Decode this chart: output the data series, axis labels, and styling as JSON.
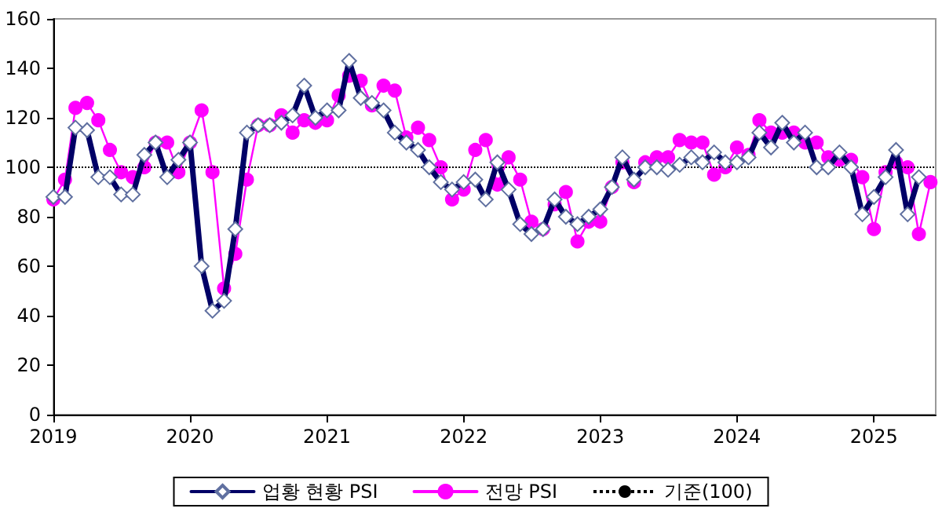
{
  "chart_data": {
    "type": "line",
    "x": [
      "2019-01",
      "2019-02",
      "2019-03",
      "2019-04",
      "2019-05",
      "2019-06",
      "2019-07",
      "2019-08",
      "2019-09",
      "2019-10",
      "2019-11",
      "2019-12",
      "2020-01",
      "2020-02",
      "2020-03",
      "2020-04",
      "2020-05",
      "2020-06",
      "2020-07",
      "2020-08",
      "2020-09",
      "2020-10",
      "2020-11",
      "2020-12",
      "2021-01",
      "2021-02",
      "2021-03",
      "2021-04",
      "2021-05",
      "2021-06",
      "2021-07",
      "2021-08",
      "2021-09",
      "2021-10",
      "2021-11",
      "2021-12",
      "2022-01",
      "2022-02",
      "2022-03",
      "2022-04",
      "2022-05",
      "2022-06",
      "2022-07",
      "2022-08",
      "2022-09",
      "2022-10",
      "2022-11",
      "2022-12",
      "2023-01",
      "2023-02",
      "2023-03",
      "2023-04",
      "2023-05",
      "2023-06",
      "2023-07",
      "2023-08",
      "2023-09",
      "2023-10",
      "2023-11",
      "2023-12",
      "2024-01",
      "2024-02",
      "2024-03",
      "2024-04",
      "2024-05",
      "2024-06",
      "2024-07",
      "2024-08",
      "2024-09",
      "2024-10",
      "2024-11",
      "2024-12",
      "2025-01",
      "2025-02",
      "2025-03",
      "2025-04",
      "2025-05",
      "2025-06"
    ],
    "series": [
      {
        "name": "업황 현황 PSI",
        "color": "#000066",
        "marker": "diamond",
        "values": [
          88,
          88,
          116,
          115,
          96,
          96,
          89,
          89,
          105,
          110,
          96,
          103,
          110,
          60,
          42,
          46,
          75,
          114,
          117,
          117,
          118,
          121,
          133,
          120,
          123,
          123,
          143,
          128,
          126,
          123,
          114,
          110,
          107,
          100,
          94,
          91,
          94,
          95,
          87,
          102,
          91,
          77,
          73,
          75,
          87,
          80,
          77,
          80,
          83,
          92,
          104,
          95,
          100,
          100,
          99,
          101,
          104,
          102,
          106,
          102,
          102,
          104,
          114,
          108,
          118,
          110,
          114,
          100,
          100,
          106,
          100,
          81,
          88,
          96,
          107,
          81,
          96,
          null
        ]
      },
      {
        "name": "전망 PSI",
        "color": "#ff00ff",
        "marker": "circle",
        "values": [
          87,
          95,
          124,
          126,
          119,
          107,
          98,
          96,
          100,
          110,
          110,
          98,
          110,
          123,
          98,
          51,
          65,
          95,
          117,
          117,
          121,
          114,
          119,
          118,
          119,
          129,
          137,
          135,
          125,
          133,
          131,
          112,
          116,
          111,
          100,
          87,
          91,
          107,
          111,
          93,
          104,
          95,
          78,
          75,
          85,
          90,
          70,
          78,
          78,
          92,
          102,
          94,
          102,
          104,
          104,
          111,
          110,
          110,
          97,
          100,
          108,
          105,
          119,
          114,
          114,
          114,
          110,
          110,
          104,
          103,
          103,
          96,
          75,
          98,
          102,
          100,
          73,
          94
        ]
      }
    ],
    "ref_lines": [
      {
        "axis": "y",
        "value": 100,
        "label": "기준(100)",
        "color": "#000000",
        "line_style": "dotted"
      }
    ],
    "xlim": [
      "2019-01",
      "2025-06-15"
    ],
    "xticks": [
      "2019",
      "2020",
      "2021",
      "2022",
      "2023",
      "2024",
      "2025"
    ],
    "ylim": [
      0,
      160
    ],
    "yticks": [
      0,
      20,
      40,
      60,
      80,
      100,
      120,
      140,
      160
    ],
    "grid": false,
    "legend": "bottom"
  }
}
